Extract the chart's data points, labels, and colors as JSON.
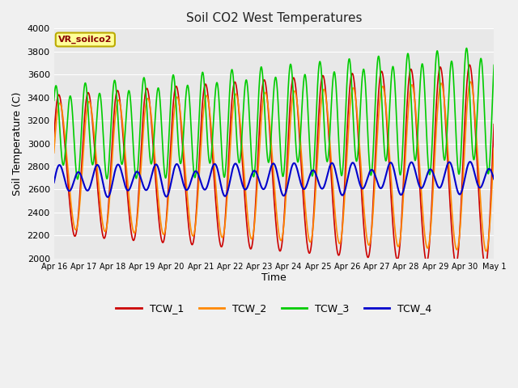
{
  "title": "Soil CO2 West Temperatures",
  "xlabel": "Time",
  "ylabel": "Soil Temperature (C)",
  "ylim": [
    2000,
    4000
  ],
  "fig_facecolor": "#f0f0f0",
  "plot_facecolor": "#e8e8e8",
  "annotation_text": "VR_soilco2",
  "annotation_box_color": "#ffff99",
  "annotation_border_color": "#bbaa00",
  "series_colors": {
    "TCW_1": "#cc0000",
    "TCW_2": "#ff8800",
    "TCW_3": "#00cc00",
    "TCW_4": "#0000cc"
  },
  "x_tick_labels": [
    "Apr 16",
    "Apr 17",
    "Apr 18",
    "Apr 19",
    "Apr 20",
    "Apr 21",
    "Apr 22",
    "Apr 23",
    "Apr 24",
    "Apr 25",
    "Apr 26",
    "Apr 27",
    "Apr 28",
    "Apr 29",
    "Apr 30",
    "May 1"
  ],
  "num_days": 15,
  "points_per_day": 200
}
